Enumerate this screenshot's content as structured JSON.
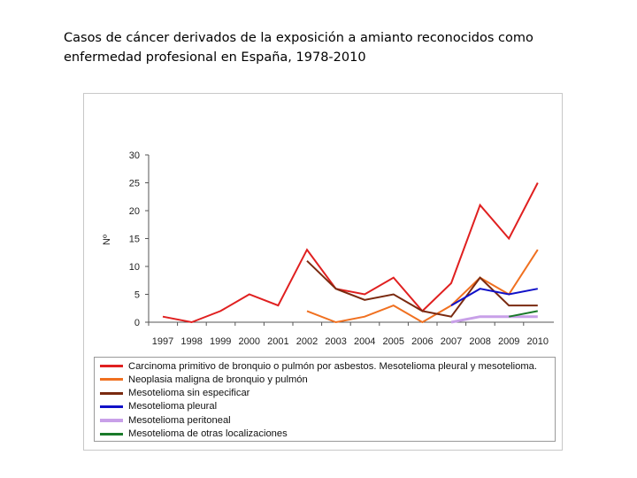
{
  "title": "Casos de cáncer derivados de la exposición a amianto reconocidos como enfermedad profesional en España, 1978-2010",
  "chart_data": {
    "type": "line",
    "title": "",
    "xlabel": "",
    "ylabel": "Nº",
    "ylim": [
      0,
      30
    ],
    "yticks": [
      "0",
      "5",
      "10",
      "15",
      "20",
      "25",
      "30"
    ],
    "categories": [
      "1997",
      "1998",
      "1999",
      "2000",
      "2001",
      "2002",
      "2003",
      "2004",
      "2005",
      "2006",
      "2007",
      "2008",
      "2009",
      "2010"
    ],
    "grid": false,
    "legend_position": "bottom",
    "series": [
      {
        "name": "Carcinoma primitivo de bronquio o pulmón por asbestos. Mesotelioma pleural y mesotelioma.",
        "color": "#e02020",
        "values": [
          1,
          0,
          2,
          5,
          3,
          13,
          6,
          5,
          8,
          2,
          7,
          21,
          15,
          25
        ]
      },
      {
        "name": "Neoplasia maligna de bronquio y pulmón",
        "color": "#f07020",
        "values": [
          null,
          null,
          null,
          null,
          null,
          2,
          0,
          1,
          3,
          0,
          3,
          8,
          5,
          13
        ]
      },
      {
        "name": "Mesotelioma sin especificar",
        "color": "#7a2a10",
        "values": [
          null,
          null,
          null,
          null,
          null,
          11,
          6,
          4,
          5,
          2,
          1,
          8,
          3,
          3
        ]
      },
      {
        "name": "Mesotelioma pleural",
        "color": "#1010c8",
        "values": [
          null,
          null,
          null,
          null,
          null,
          null,
          null,
          null,
          null,
          null,
          3,
          6,
          5,
          6
        ]
      },
      {
        "name": "Mesotelioma peritoneal",
        "color": "#c8a0e8",
        "values": [
          null,
          null,
          null,
          null,
          null,
          null,
          null,
          null,
          null,
          null,
          0,
          1,
          1,
          1
        ]
      },
      {
        "name": "Mesotelioma de otras localizaciones",
        "color": "#1a7a2a",
        "values": [
          null,
          null,
          null,
          null,
          null,
          null,
          null,
          null,
          null,
          null,
          null,
          null,
          1,
          2
        ]
      }
    ]
  }
}
